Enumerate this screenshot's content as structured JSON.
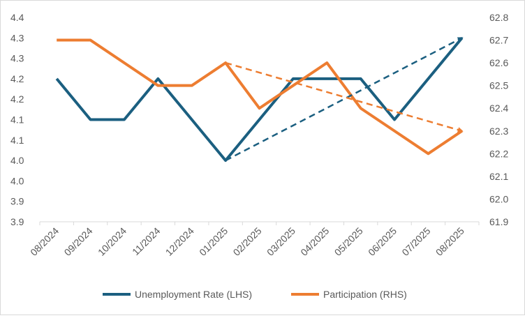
{
  "chart_data": {
    "type": "line",
    "title": "",
    "categories": [
      "08/2024",
      "09/2024",
      "10/2024",
      "11/2024",
      "12/2024",
      "01/2025",
      "02/2025",
      "03/2025",
      "04/2025",
      "05/2025",
      "06/2025",
      "07/2025",
      "08/2025"
    ],
    "y_left": {
      "range": [
        3.85,
        4.35
      ],
      "tick_labels": [
        "4.4",
        "4.3",
        "4.3",
        "4.2",
        "4.2",
        "4.1",
        "4.1",
        "4.0",
        "4.0",
        "3.9",
        "3.9"
      ]
    },
    "y_right": {
      "range": [
        61.9,
        62.8
      ],
      "tick_labels": [
        "62.8",
        "62.7",
        "62.6",
        "62.5",
        "62.4",
        "62.3",
        "62.2",
        "62.1",
        "62.0",
        "61.9"
      ]
    },
    "grid": false,
    "legend_position": "bottom",
    "series": [
      {
        "name": "Unemployment Rate (LHS)",
        "axis": "left",
        "color": "#1b5f80",
        "values": [
          4.2,
          4.1,
          4.1,
          4.2,
          4.1,
          4.0,
          4.1,
          4.2,
          4.2,
          4.2,
          4.1,
          4.2,
          4.3
        ]
      },
      {
        "name": "Participation (RHS)",
        "axis": "right",
        "color": "#ed7d31",
        "values": [
          62.7,
          62.7,
          62.6,
          62.5,
          62.5,
          62.6,
          62.4,
          62.5,
          62.6,
          62.4,
          62.3,
          62.2,
          62.3
        ]
      }
    ],
    "trend_arrows": [
      {
        "series": "Unemployment Rate (LHS)",
        "from": [
          "01/2025",
          4.0
        ],
        "to": [
          "08/2025",
          4.3
        ],
        "style": "dashed",
        "color": "#1b5f80"
      },
      {
        "series": "Participation (RHS)",
        "from": [
          "01/2025",
          62.6
        ],
        "to": [
          "08/2025",
          62.3
        ],
        "style": "dashed",
        "color": "#ed7d31"
      }
    ]
  }
}
